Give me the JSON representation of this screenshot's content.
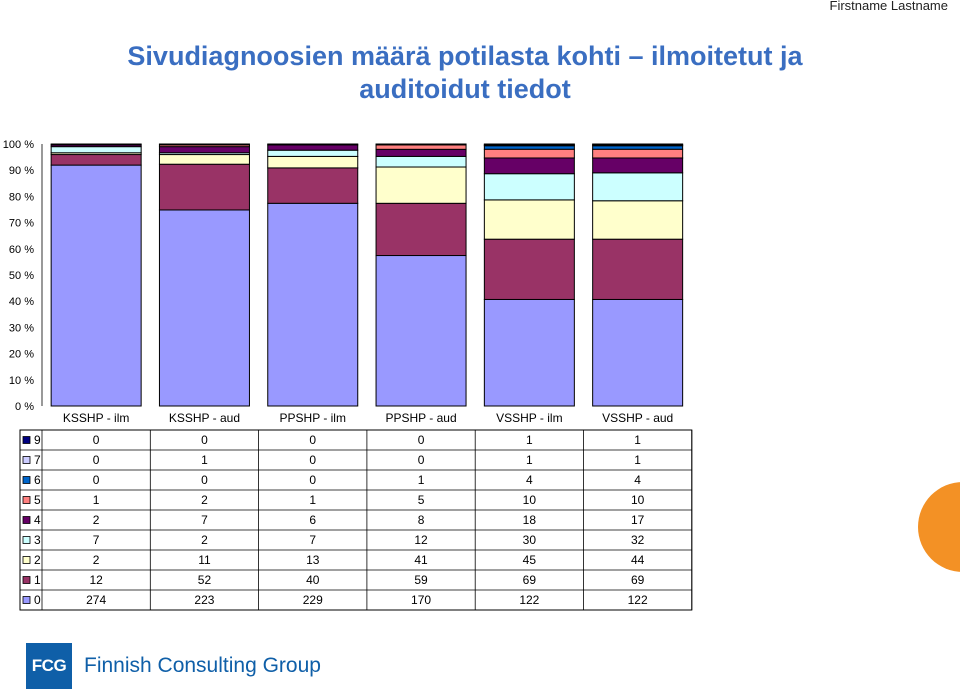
{
  "header": {
    "author": "Firstname Lastname"
  },
  "title_line1": "Sivudiagnoosien määrä potilasta kohti – ilmoitetut ja",
  "title_line2": "auditoidut tiedot",
  "footer": {
    "logo_text": "FCG",
    "company": "Finnish Consulting Group"
  },
  "chart_data": {
    "type": "bar",
    "stacked": "percent",
    "categories": [
      "KSSHP - ilm",
      "KSSHP - aud",
      "PPSHP - ilm",
      "PPSHP - aud",
      "VSSHP - ilm",
      "VSSHP - aud"
    ],
    "ytick_labels": [
      "0 %",
      "10 %",
      "20 %",
      "30 %",
      "40 %",
      "50 %",
      "60 %",
      "70 %",
      "80 %",
      "90 %",
      "100 %"
    ],
    "ylim": [
      0,
      100
    ],
    "grid": false,
    "legend": "data-table-left",
    "series": [
      {
        "name": "0",
        "color": "#9999ff",
        "values": [
          274,
          223,
          229,
          170,
          122,
          122
        ]
      },
      {
        "name": "1",
        "color": "#993366",
        "values": [
          12,
          52,
          40,
          59,
          69,
          69
        ]
      },
      {
        "name": "2",
        "color": "#ffffcc",
        "values": [
          2,
          11,
          13,
          41,
          45,
          44
        ]
      },
      {
        "name": "3",
        "color": "#ccffff",
        "values": [
          7,
          2,
          7,
          12,
          30,
          32
        ]
      },
      {
        "name": "4",
        "color": "#660066",
        "values": [
          2,
          7,
          6,
          8,
          18,
          17
        ]
      },
      {
        "name": "5",
        "color": "#ff8080",
        "values": [
          1,
          2,
          1,
          5,
          10,
          10
        ]
      },
      {
        "name": "6",
        "color": "#0066cc",
        "values": [
          0,
          0,
          0,
          1,
          4,
          4
        ]
      },
      {
        "name": "7",
        "color": "#ccccff",
        "values": [
          0,
          1,
          0,
          0,
          1,
          1
        ]
      },
      {
        "name": "9",
        "color": "#000080",
        "values": [
          0,
          0,
          0,
          0,
          1,
          1
        ]
      }
    ],
    "table_row_order": [
      "9",
      "7",
      "6",
      "5",
      "4",
      "3",
      "2",
      "1",
      "0"
    ]
  }
}
